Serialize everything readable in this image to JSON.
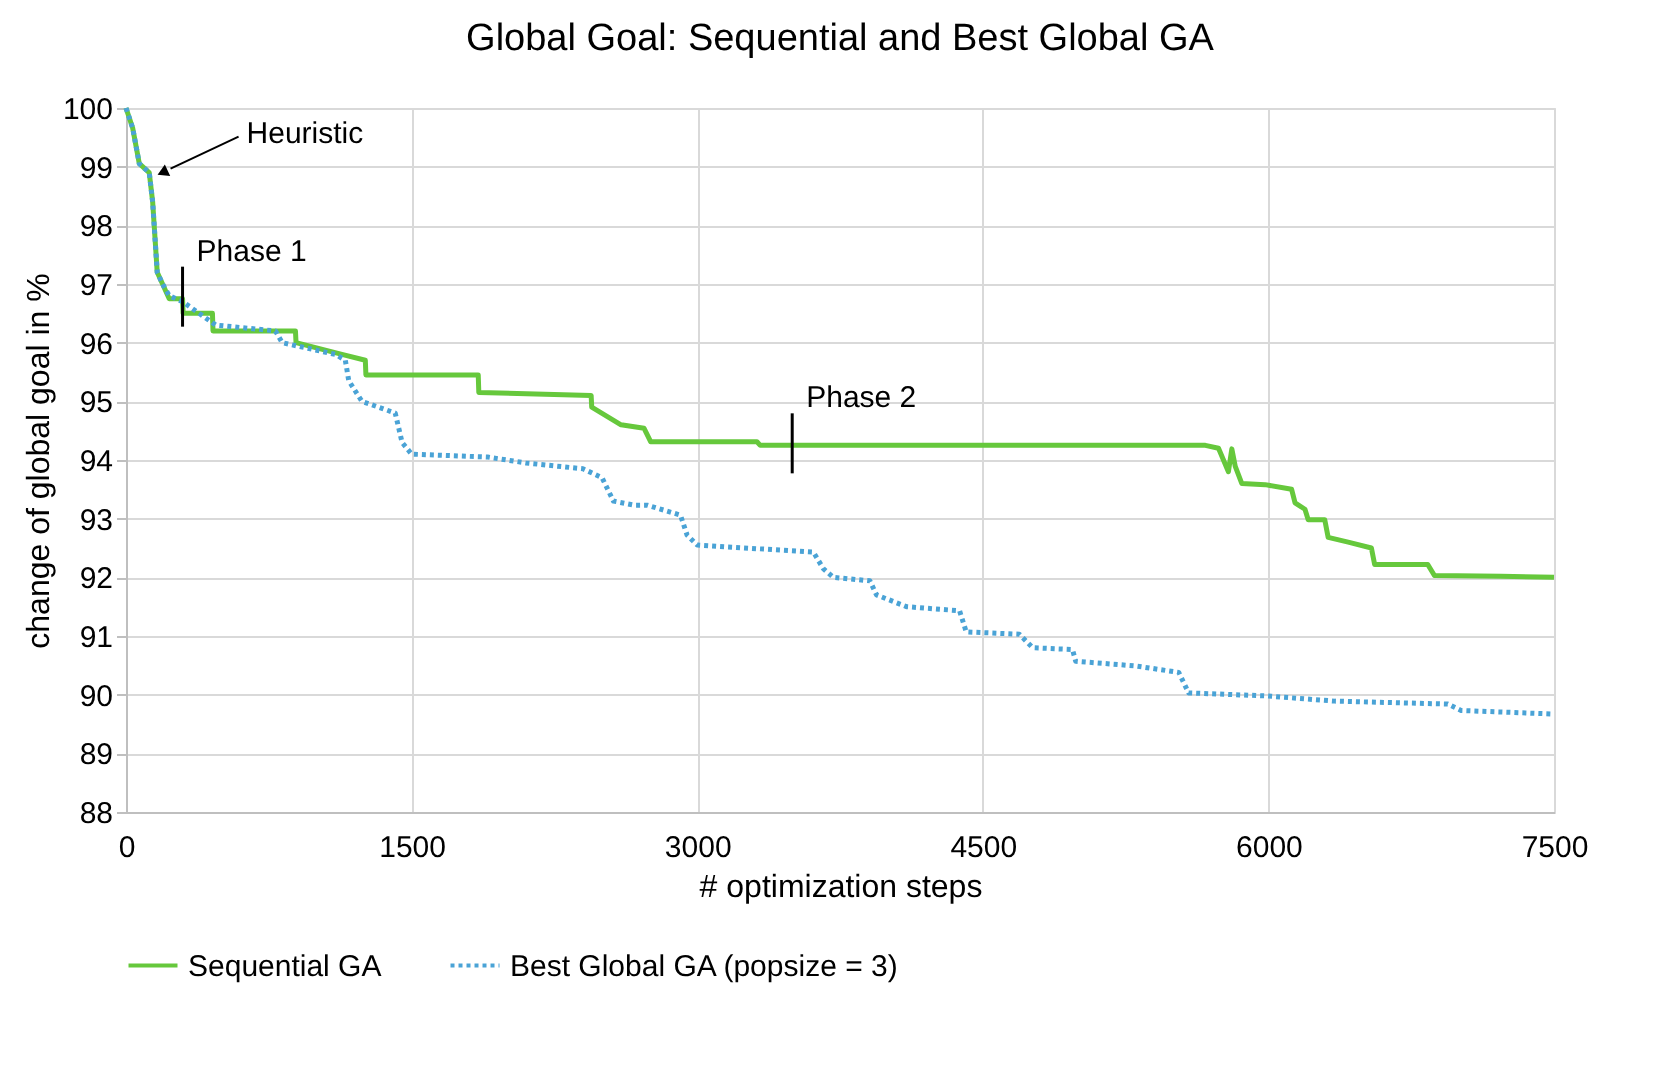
{
  "chart_data": {
    "type": "line",
    "title": "Global Goal: Sequential and Best Global GA",
    "xlabel": "# optimization steps",
    "ylabel": "change of global goal in %",
    "xlim": [
      0,
      7500
    ],
    "xticks": [
      0,
      1500,
      3000,
      4500,
      6000,
      7500
    ],
    "ylim": [
      88,
      100
    ],
    "yticks": [
      88,
      89,
      90,
      91,
      92,
      93,
      94,
      95,
      96,
      97,
      98,
      99,
      100
    ],
    "grid": true,
    "legend": "bottom",
    "marker": "none",
    "series": [
      {
        "name": "Sequential GA",
        "color": "#66c83c",
        "line_style": "solid",
        "x": [
          0,
          35,
          70,
          122,
          140,
          164,
          192,
          227,
          297,
          300,
          454,
          457,
          890,
          893,
          1134,
          1257,
          1260,
          1850,
          1853,
          2443,
          2446,
          2600,
          2721,
          2756,
          3314,
          3331,
          5669,
          5738,
          5790,
          5808,
          5826,
          5860,
          5983,
          6122,
          6140,
          6192,
          6209,
          6296,
          6314,
          6419,
          6541,
          6558,
          6837,
          6872,
          7221,
          7500
        ],
        "values": [
          100,
          99.66,
          99.05,
          98.9,
          98.4,
          97.2,
          97.0,
          96.75,
          96.75,
          96.5,
          96.5,
          96.2,
          96.2,
          96.0,
          95.8,
          95.7,
          95.45,
          95.45,
          95.15,
          95.1,
          94.9,
          94.6,
          94.54,
          94.31,
          94.31,
          94.25,
          94.25,
          94.2,
          93.8,
          94.19,
          93.89,
          93.6,
          93.58,
          93.5,
          93.27,
          93.16,
          92.98,
          92.98,
          92.68,
          92.6,
          92.5,
          92.22,
          92.22,
          92.03,
          92.02,
          92.0
        ]
      },
      {
        "name": "Best Global GA (popsize = 3)",
        "color": "#4aa3d6",
        "line_style": "dotted",
        "x": [
          0,
          35,
          70,
          122,
          140,
          164,
          192,
          227,
          297,
          471,
          785,
          820,
          1100,
          1152,
          1170,
          1239,
          1414,
          1450,
          1500,
          1900,
          2100,
          2400,
          2500,
          2560,
          2669,
          2738,
          2912,
          2947,
          3000,
          3610,
          3662,
          3715,
          3907,
          3942,
          4099,
          4378,
          4413,
          4692,
          4762,
          4971,
          4988,
          5302,
          5529,
          5581,
          5983,
          6349,
          6942,
          7012,
          7500
        ],
        "values": [
          100,
          99.66,
          99.05,
          98.9,
          98.4,
          97.2,
          97.0,
          96.8,
          96.7,
          96.3,
          96.2,
          96.0,
          95.8,
          95.7,
          95.35,
          95.0,
          94.8,
          94.3,
          94.1,
          94.05,
          93.95,
          93.85,
          93.7,
          93.3,
          93.23,
          93.23,
          93.06,
          92.72,
          92.55,
          92.43,
          92.15,
          92.0,
          91.94,
          91.7,
          91.5,
          91.43,
          91.07,
          91.03,
          90.8,
          90.77,
          90.57,
          90.49,
          90.38,
          90.03,
          89.98,
          89.89,
          89.84,
          89.73,
          89.67
        ]
      }
    ],
    "annotations": [
      {
        "text": "Heuristic",
        "x": 192,
        "y": 98.9
      },
      {
        "text": "Phase 1",
        "x": 297,
        "y": 96.75
      },
      {
        "text": "Phase 2",
        "x": 3499,
        "y": 94.25
      }
    ]
  }
}
